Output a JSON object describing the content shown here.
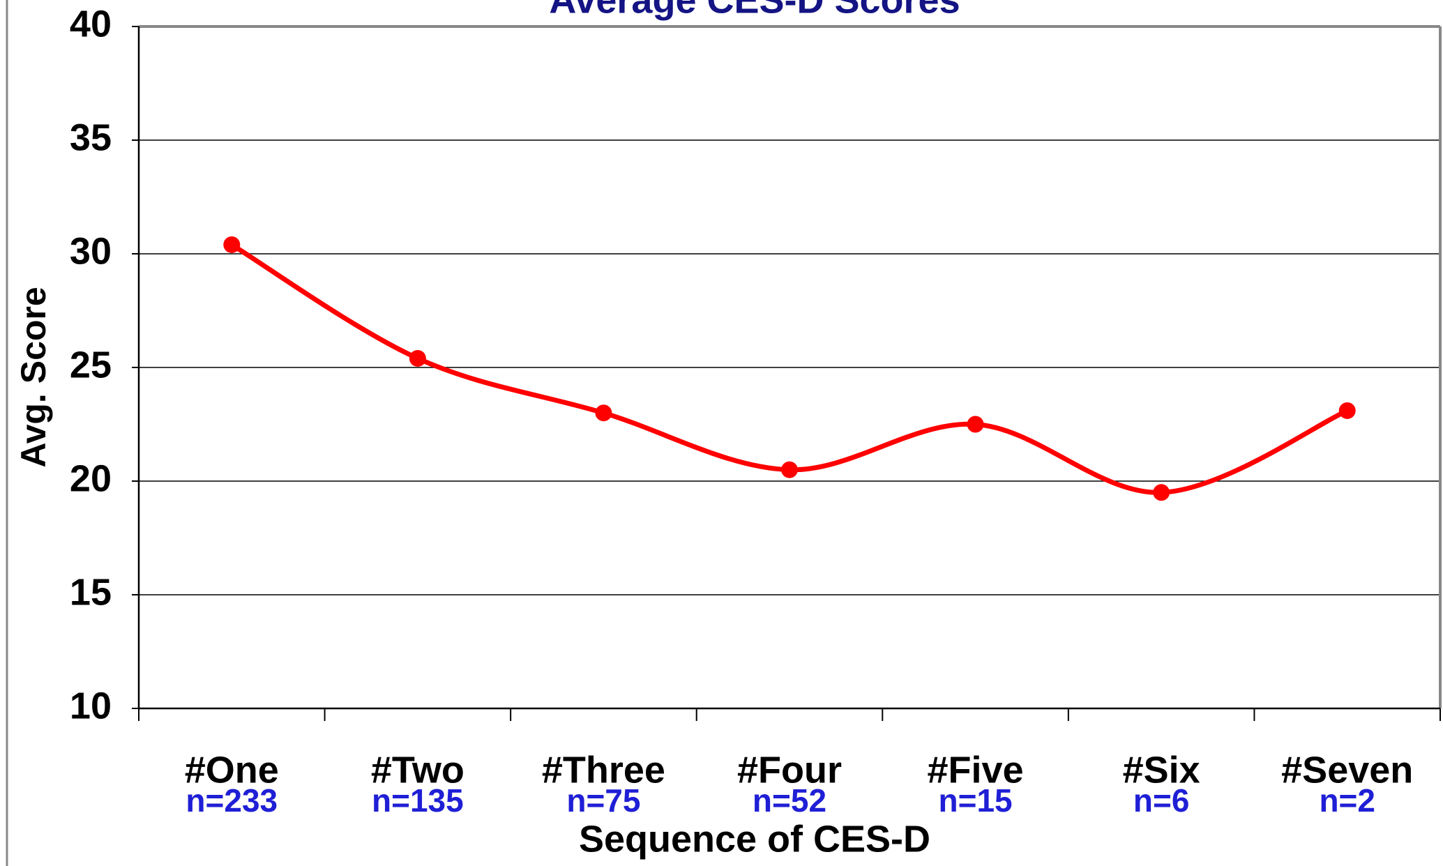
{
  "chart_data": {
    "type": "line",
    "title": "Average CES-D Scores",
    "xlabel": "Sequence of CES-D",
    "ylabel": "Avg. Score",
    "categories": [
      "#One",
      "#Two",
      "#Three",
      "#Four",
      "#Five",
      "#Six",
      "#Seven"
    ],
    "category_notes": [
      "n=233",
      "n=135",
      "n=75",
      "n=52",
      "n=15",
      "n=6",
      "n=2"
    ],
    "series": [
      {
        "name": "Avg. Score",
        "color": "#ff0000",
        "values": [
          30.4,
          25.4,
          23.0,
          20.5,
          22.5,
          19.5,
          23.1
        ]
      }
    ],
    "ylim": [
      10,
      40
    ],
    "yticks": [
      10,
      15,
      20,
      25,
      30,
      35,
      40
    ],
    "grid": true,
    "smooth": true
  }
}
